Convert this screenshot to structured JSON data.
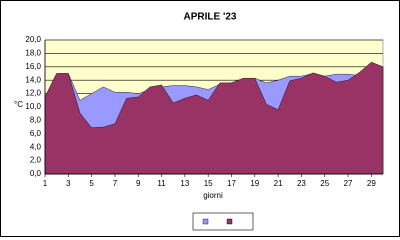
{
  "chart_data": {
    "type": "area",
    "title": "APRILE '23",
    "x_label": "giorni",
    "y_label": "°C",
    "x": [
      1,
      2,
      3,
      4,
      5,
      6,
      7,
      8,
      9,
      10,
      11,
      12,
      13,
      14,
      15,
      16,
      17,
      18,
      19,
      20,
      21,
      22,
      23,
      24,
      25,
      26,
      27,
      28,
      29,
      30
    ],
    "xlim": [
      1,
      30
    ],
    "xticks": [
      1,
      3,
      5,
      7,
      9,
      11,
      13,
      15,
      17,
      19,
      21,
      23,
      25,
      27,
      29
    ],
    "ylim": [
      0,
      20
    ],
    "yticks": [
      {
        "value": 0,
        "label": "0,0"
      },
      {
        "value": 2,
        "label": "2,0"
      },
      {
        "value": 4,
        "label": "4,0"
      },
      {
        "value": 6,
        "label": "6,0"
      },
      {
        "value": 8,
        "label": "8,0"
      },
      {
        "value": 10,
        "label": "10,0"
      },
      {
        "value": 12,
        "label": "12,0"
      },
      {
        "value": 14,
        "label": "14,0"
      },
      {
        "value": 16,
        "label": "16,0"
      },
      {
        "value": 18,
        "label": "18,0"
      },
      {
        "value": 20,
        "label": "20,0"
      }
    ],
    "grid": true,
    "background": "#ffffcc",
    "series": [
      {
        "color": "#9999ff",
        "values": [
          11.5,
          15.0,
          15.0,
          11.0,
          12.0,
          13.0,
          12.2,
          12.2,
          12.0,
          12.6,
          13.0,
          13.2,
          13.2,
          13.0,
          12.6,
          13.4,
          13.6,
          14.0,
          14.3,
          13.6,
          14.0,
          14.6,
          14.6,
          15.0,
          14.6,
          14.9,
          14.9,
          14.7,
          16.5,
          16.0
        ]
      },
      {
        "color": "#993366",
        "values": [
          11.5,
          15.0,
          15.0,
          9.1,
          6.9,
          7.0,
          7.5,
          11.3,
          11.5,
          13.0,
          13.3,
          10.6,
          11.3,
          11.8,
          11.0,
          13.6,
          13.6,
          14.3,
          14.3,
          10.4,
          9.6,
          13.9,
          14.3,
          15.1,
          14.6,
          13.7,
          14.0,
          15.2,
          16.7,
          16.0
        ]
      }
    ]
  }
}
